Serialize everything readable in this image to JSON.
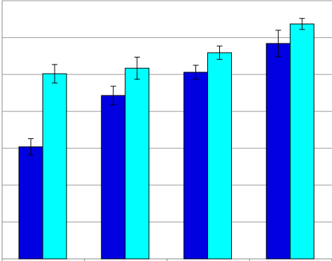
{
  "chart_data": {
    "type": "bar",
    "categories": [
      null,
      null,
      null,
      null
    ],
    "series": [
      {
        "color": "#0000e0",
        "values": [
          3.04,
          4.43,
          5.06,
          5.84
        ],
        "errors": [
          0.22,
          0.25,
          0.19,
          0.36
        ]
      },
      {
        "color": "#00ffff",
        "values": [
          5.02,
          5.17,
          5.59,
          6.37
        ],
        "errors": [
          0.25,
          0.3,
          0.18,
          0.15
        ]
      }
    ],
    "ylim": [
      0,
      7
    ],
    "yticks": [
      0,
      1,
      2,
      3,
      4,
      5,
      6,
      7
    ],
    "grid": true
  }
}
